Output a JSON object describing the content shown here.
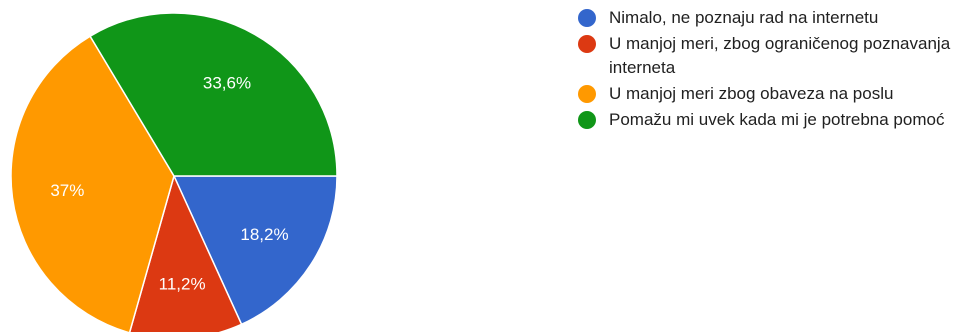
{
  "chart_data": {
    "type": "pie",
    "slices": [
      {
        "label": "Nimalo, ne poznaju rad na internetu",
        "value": 18.2,
        "value_label": "18,2%",
        "color": "#3366cc"
      },
      {
        "label": "U manjoj meri, zbog ograničenog poznavanja interneta",
        "value": 11.2,
        "value_label": "11,2%",
        "color": "#dc3912"
      },
      {
        "label": "U manjoj meri zbog obaveza na poslu",
        "value": 37,
        "value_label": "37%",
        "color": "#ff9900"
      },
      {
        "label": "Pomažu mi uvek kada mi je potrebna pomoć",
        "value": 33.6,
        "value_label": "33,6%",
        "color": "#109618"
      }
    ],
    "legend_position": "right"
  }
}
